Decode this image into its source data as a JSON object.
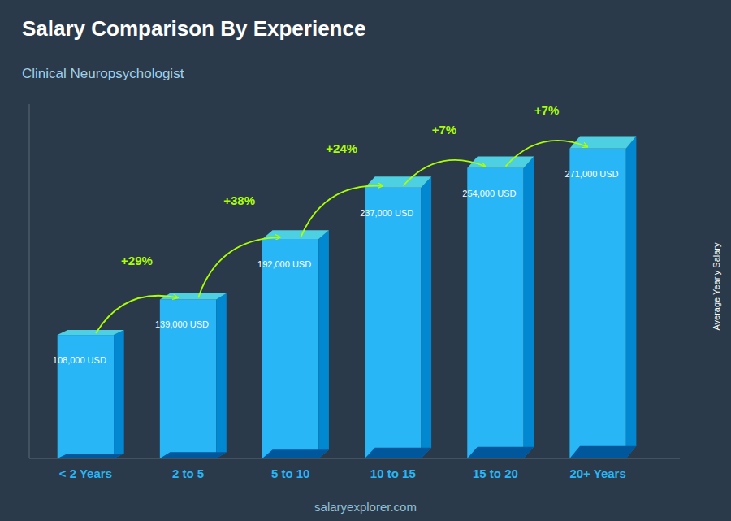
{
  "chart_data": {
    "type": "bar",
    "title": "Salary Comparison By Experience",
    "subtitle": "Clinical Neuropsychologist",
    "y_label": "Average Yearly Salary",
    "watermark": "salaryexplorer.com",
    "categories": [
      "< 2 Years",
      "2 to 5",
      "5 to 10",
      "10 to 15",
      "15 to 20",
      "20+ Years"
    ],
    "values": [
      108000,
      139000,
      192000,
      237000,
      254000,
      271000
    ],
    "value_labels": [
      "108,000 USD",
      "139,000 USD",
      "192,000 USD",
      "237,000 USD",
      "254,000 USD",
      "271,000 USD"
    ],
    "data_labels": true,
    "annotations": [
      "+29%",
      "+38%",
      "+24%",
      "+7%",
      "+7%"
    ],
    "color": "#29B6F6",
    "ylim": [
      0,
      310000
    ],
    "tick_labels": "x",
    "grid": false
  }
}
